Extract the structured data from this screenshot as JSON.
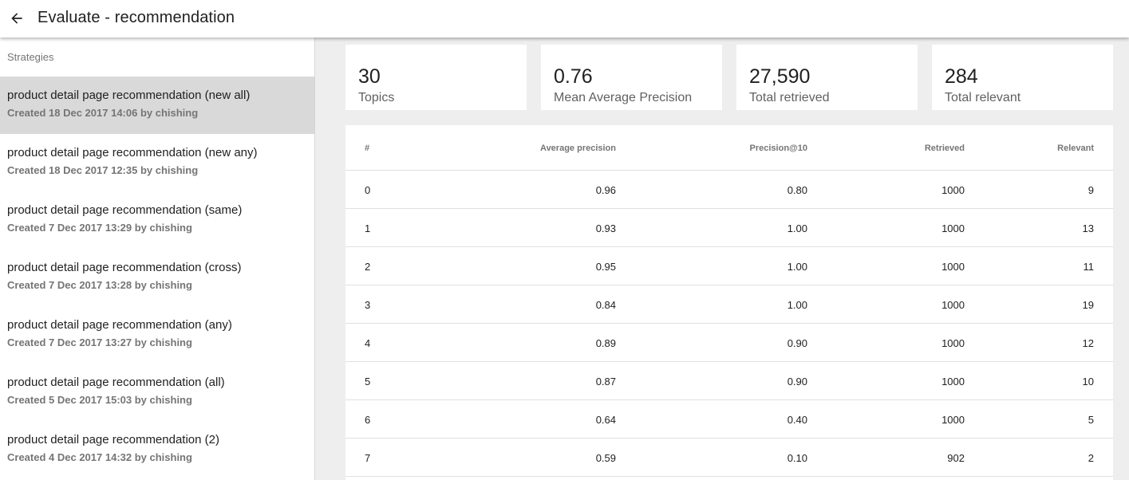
{
  "header": {
    "back_icon": "arrow-left-icon",
    "title": "Evaluate - recommendation"
  },
  "sidebar": {
    "header": "Strategies",
    "items": [
      {
        "name": "product detail page recommendation (new all)",
        "meta": "Created 18 Dec 2017 14:06 by chishing",
        "selected": true
      },
      {
        "name": "product detail page recommendation (new any)",
        "meta": "Created 18 Dec 2017 12:35 by chishing",
        "selected": false
      },
      {
        "name": "product detail page recommendation (same)",
        "meta": "Created 7 Dec 2017 13:29 by chishing",
        "selected": false
      },
      {
        "name": "product detail page recommendation (cross)",
        "meta": "Created 7 Dec 2017 13:28 by chishing",
        "selected": false
      },
      {
        "name": "product detail page recommendation (any)",
        "meta": "Created 7 Dec 2017 13:27 by chishing",
        "selected": false
      },
      {
        "name": "product detail page recommendation (all)",
        "meta": "Created 5 Dec 2017 15:03 by chishing",
        "selected": false
      },
      {
        "name": "product detail page recommendation (2)",
        "meta": "Created 4 Dec 2017 14:32 by chishing",
        "selected": false
      }
    ]
  },
  "stats": [
    {
      "value": "30",
      "label": "Topics"
    },
    {
      "value": "0.76",
      "label": "Mean Average Precision"
    },
    {
      "value": "27,590",
      "label": "Total retrieved"
    },
    {
      "value": "284",
      "label": "Total relevant"
    }
  ],
  "table": {
    "columns": [
      "#",
      "Average precision",
      "Precision@10",
      "Retrieved",
      "Relevant"
    ],
    "rows": [
      [
        "0",
        "0.96",
        "0.80",
        "1000",
        "9"
      ],
      [
        "1",
        "0.93",
        "1.00",
        "1000",
        "13"
      ],
      [
        "2",
        "0.95",
        "1.00",
        "1000",
        "11"
      ],
      [
        "3",
        "0.84",
        "1.00",
        "1000",
        "19"
      ],
      [
        "4",
        "0.89",
        "0.90",
        "1000",
        "12"
      ],
      [
        "5",
        "0.87",
        "0.90",
        "1000",
        "10"
      ],
      [
        "6",
        "0.64",
        "0.40",
        "1000",
        "5"
      ],
      [
        "7",
        "0.59",
        "0.10",
        "902",
        "2"
      ]
    ]
  },
  "colors": {
    "selected_item_bg": "#d9d9d9",
    "main_bg": "#eeeeee",
    "card_bg": "#ffffff"
  }
}
